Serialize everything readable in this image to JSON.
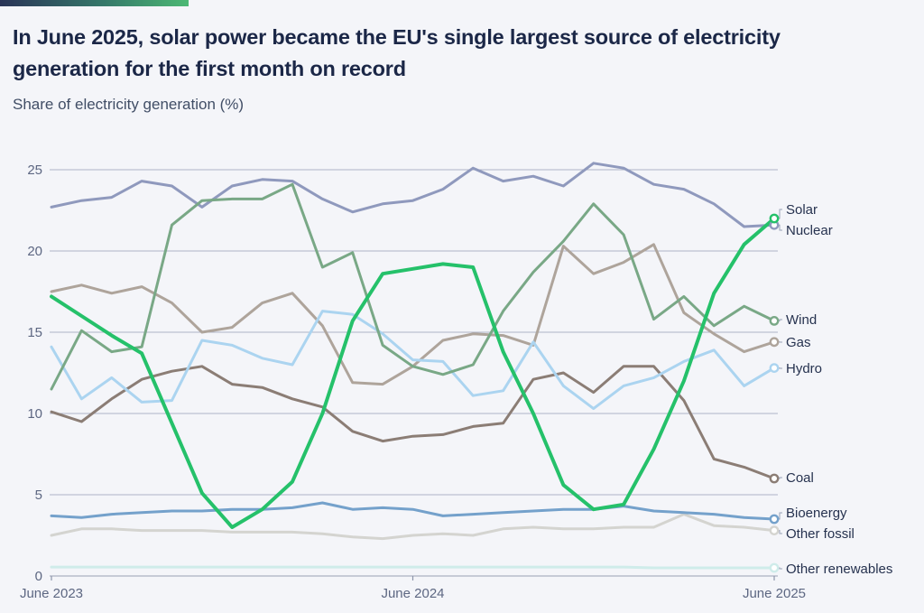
{
  "header": {
    "title": "In June 2025, solar power became the EU's single largest source of electricity generation for the first month on record",
    "subtitle": "Share of electricity generation (%)"
  },
  "accent_bar": {
    "color_left": "#2a3457",
    "color_mid": "#35786a",
    "color_right": "#4cb874"
  },
  "chart_data": {
    "type": "line",
    "title": "In June 2025, solar power became the EU's single largest source of electricity generation for the first month on record",
    "ylabel": "Share of electricity generation (%)",
    "grid": "horizontal",
    "legend_position": "right-of-line-ends",
    "x_axis": {
      "unit": "month",
      "n_points": 25,
      "tick_labels": [
        "June 2023",
        "June 2024",
        "June 2025"
      ],
      "tick_indices": [
        0,
        12,
        24
      ]
    },
    "y_axis": {
      "ticks": [
        0,
        5,
        10,
        15,
        20,
        25
      ],
      "range": [
        0,
        26.3
      ]
    },
    "series": [
      {
        "name": "Other renewables",
        "color": "#cfecea",
        "values": [
          0.55,
          0.55,
          0.55,
          0.55,
          0.55,
          0.55,
          0.55,
          0.55,
          0.55,
          0.55,
          0.55,
          0.55,
          0.55,
          0.55,
          0.55,
          0.55,
          0.55,
          0.55,
          0.55,
          0.55,
          0.5,
          0.5,
          0.5,
          0.5,
          0.5
        ]
      },
      {
        "name": "Other fossil",
        "color": "#d4d4d0",
        "values": [
          2.5,
          2.9,
          2.9,
          2.8,
          2.8,
          2.8,
          2.7,
          2.7,
          2.7,
          2.6,
          2.4,
          2.3,
          2.5,
          2.6,
          2.5,
          2.9,
          3.0,
          2.9,
          2.9,
          3.0,
          3.0,
          3.8,
          3.1,
          3.0,
          2.8
        ]
      },
      {
        "name": "Bioenergy",
        "color": "#74a1cb",
        "values": [
          3.7,
          3.6,
          3.8,
          3.9,
          4.0,
          4.0,
          4.1,
          4.1,
          4.2,
          4.5,
          4.1,
          4.2,
          4.1,
          3.7,
          3.8,
          3.9,
          4.0,
          4.1,
          4.1,
          4.3,
          4.0,
          3.9,
          3.8,
          3.6,
          3.5
        ]
      },
      {
        "name": "Coal",
        "color": "#8b7d75",
        "values": [
          10.1,
          9.5,
          10.9,
          12.1,
          12.6,
          12.9,
          11.8,
          11.6,
          10.9,
          10.4,
          8.9,
          8.3,
          8.6,
          8.7,
          9.2,
          9.4,
          12.1,
          12.5,
          11.3,
          12.9,
          12.9,
          10.8,
          7.2,
          6.7,
          6.0
        ]
      },
      {
        "name": "Gas",
        "color": "#aea49b",
        "values": [
          17.5,
          17.9,
          17.4,
          17.8,
          16.8,
          15.0,
          15.3,
          16.8,
          17.4,
          15.4,
          11.9,
          11.8,
          12.9,
          14.5,
          14.9,
          14.8,
          14.2,
          20.3,
          18.6,
          19.3,
          20.4,
          16.2,
          14.9,
          13.8,
          14.4
        ]
      },
      {
        "name": "Hydro",
        "color": "#abd4f0",
        "values": [
          14.1,
          10.9,
          12.2,
          10.7,
          10.8,
          14.5,
          14.2,
          13.4,
          13.0,
          16.3,
          16.1,
          14.9,
          13.3,
          13.2,
          11.1,
          11.4,
          14.4,
          11.7,
          10.3,
          11.7,
          12.2,
          13.2,
          13.9,
          11.7,
          12.8
        ]
      },
      {
        "name": "Nuclear",
        "color": "#8f99bd",
        "values": [
          22.7,
          23.1,
          23.3,
          24.3,
          24.0,
          22.7,
          24.0,
          24.4,
          24.3,
          23.2,
          22.4,
          22.9,
          23.1,
          23.8,
          25.1,
          24.3,
          24.6,
          24.0,
          25.4,
          25.1,
          24.1,
          23.8,
          22.9,
          21.5,
          21.6
        ]
      },
      {
        "name": "Wind",
        "color": "#79a886",
        "values": [
          11.5,
          15.1,
          13.8,
          14.1,
          21.6,
          23.1,
          23.2,
          23.2,
          24.1,
          19.0,
          19.9,
          14.2,
          12.9,
          12.4,
          13.0,
          16.3,
          18.7,
          20.6,
          22.9,
          21.0,
          15.8,
          17.2,
          15.4,
          16.6,
          15.7
        ]
      },
      {
        "name": "Solar",
        "color": "#25c16a",
        "values": [
          17.2,
          16.0,
          14.8,
          13.7,
          9.4,
          5.1,
          3.0,
          4.1,
          5.8,
          10.0,
          15.7,
          18.6,
          18.9,
          19.2,
          19.0,
          13.8,
          10.0,
          5.6,
          4.1,
          4.4,
          7.8,
          12.0,
          17.4,
          20.4,
          22.0
        ]
      }
    ]
  }
}
